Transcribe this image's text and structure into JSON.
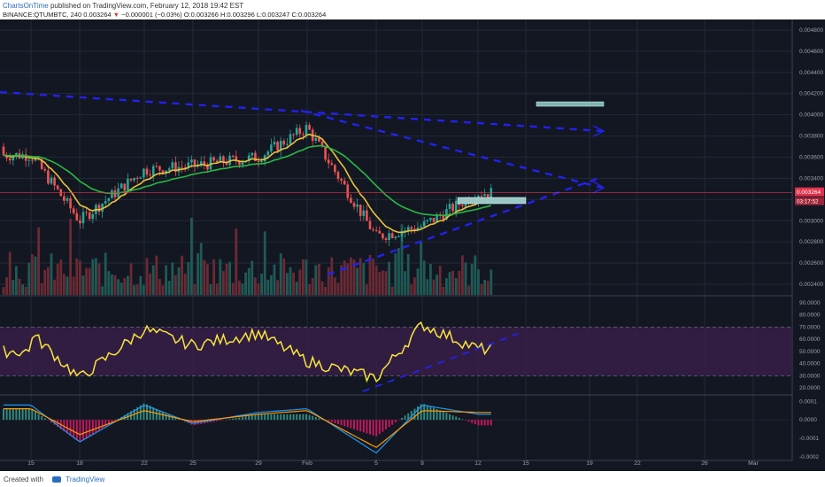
{
  "header": {
    "author": "ChartsOnTime",
    "published": "published on TradingView.com, February 12, 2018 19:42 EST",
    "symbol": "BINANCE:QTUMBTC, 240",
    "last": "0.003264",
    "arrow": "▼",
    "change": "−0.000001 (−0.03%)",
    "ohlc": "O:0.003266 H:0.003296 L:0.003247 C:0.003264"
  },
  "footer": {
    "created_with": "Created with",
    "brand": "TradingView"
  },
  "colors": {
    "background": "#131722",
    "grid": "#222836",
    "candle_up": "#26a69a",
    "candle_down": "#ef5350",
    "ema_fast": "#e8c23a",
    "ema_slow": "#2ab844",
    "trend_arrows": "#2222ee",
    "rsi": "#f7e53b",
    "rsi_band": "#3a1f4a",
    "macd": "#2196f3",
    "signal": "#ff9800",
    "price_badge": "#e0324b"
  },
  "chart_data": [
    {
      "type": "line",
      "panel": "price",
      "title": "",
      "y_ticks": [
        "0.004800",
        "0.004600",
        "0.004400",
        "0.004200",
        "0.004000",
        "0.003800",
        "0.003600",
        "0.003400",
        "0.003200",
        "0.003000",
        "0.002800",
        "0.002600",
        "0.002400"
      ],
      "ylim": [
        0.0023,
        0.0049
      ],
      "x_ticks": [
        "15",
        "18",
        "22",
        "25",
        "29",
        "Feb",
        "5",
        "8",
        "12",
        "15",
        "19",
        "22",
        "26",
        "Mar"
      ],
      "current_price": "0.003264",
      "countdown": "03:17:52",
      "series": [
        {
          "name": "",
          "x": [
            "15",
            "18",
            "22",
            "25",
            "29",
            "Feb",
            "5",
            "8",
            "12"
          ],
          "values": [
            0.00362,
            0.003,
            0.00348,
            0.00352,
            0.0036,
            0.00388,
            0.00285,
            0.00295,
            0.003264
          ]
        }
      ],
      "volume_note": "volume histogram at bottom of price panel"
    },
    {
      "type": "line",
      "panel": "rsi",
      "y_ticks": [
        "90.0000",
        "80.0000",
        "70.0000",
        "60.0000",
        "50.0000",
        "40.0000",
        "30.0000",
        "20.0000"
      ],
      "ylim": [
        15,
        95
      ],
      "bands": [
        30,
        70
      ],
      "series": [
        {
          "name": "",
          "x": [
            "15",
            "18",
            "22",
            "25",
            "29",
            "Feb",
            "5",
            "8",
            "12"
          ],
          "values": [
            65,
            28,
            68,
            55,
            65,
            42,
            28,
            72,
            52
          ]
        }
      ]
    },
    {
      "type": "line",
      "panel": "macd",
      "y_ticks": [
        "0.0001",
        "0.0000",
        "-0.0001",
        "-0.0002"
      ],
      "ylim": [
        -0.00022,
        0.00013
      ],
      "series": [
        {
          "name": "",
          "x": [
            "15",
            "18",
            "22",
            "25",
            "29",
            "Feb",
            "5",
            "8",
            "12"
          ],
          "values": [
            8e-05,
            -0.00012,
            8e-05,
            -2e-05,
            4e-05,
            6e-05,
            -0.00018,
            8e-05,
            3e-05
          ]
        },
        {
          "name": "",
          "x": [
            "15",
            "18",
            "22",
            "25",
            "29",
            "Feb",
            "5",
            "8",
            "12"
          ],
          "values": [
            6e-05,
            -8e-05,
            5e-05,
            -1e-05,
            3e-05,
            5e-05,
            -0.00015,
            5e-05,
            4e-05
          ]
        }
      ]
    }
  ]
}
